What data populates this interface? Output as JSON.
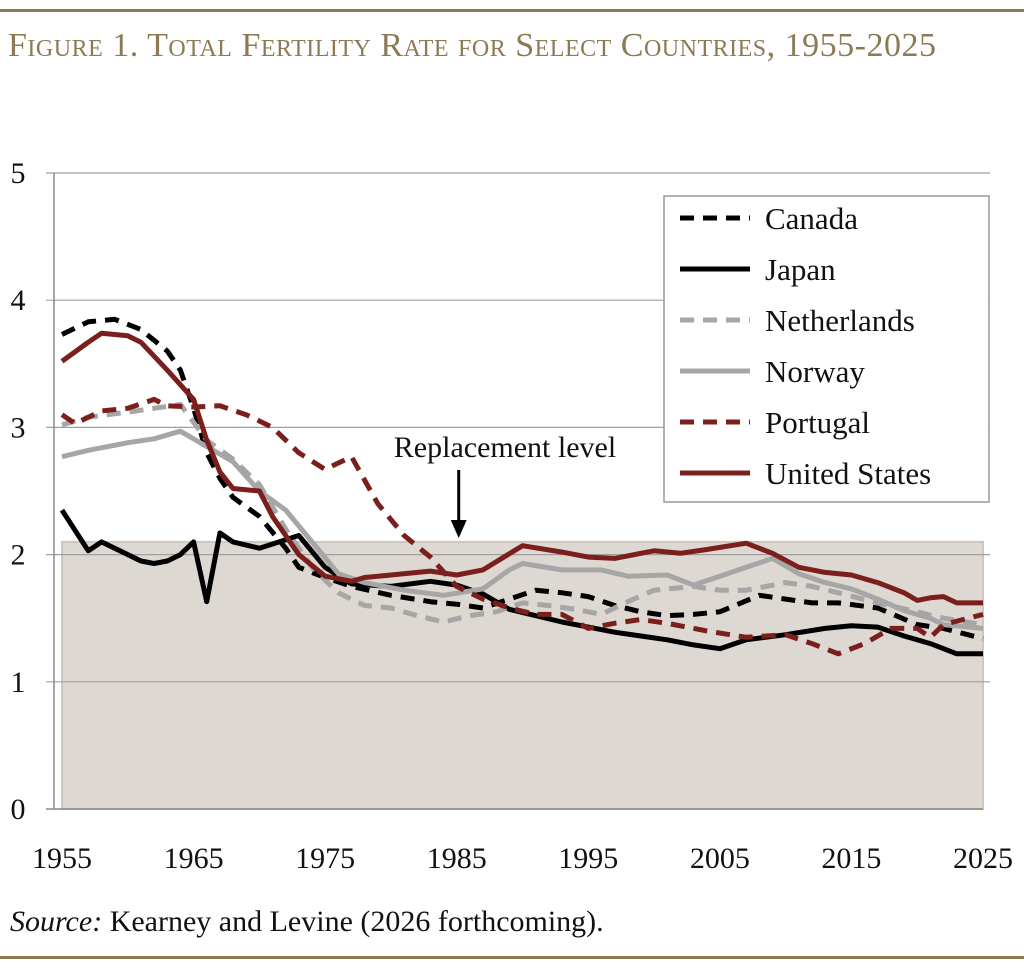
{
  "title": "Figure 1. Total Fertility Rate for Select Countries, 1955-2025",
  "source_label": "Source:",
  "source_text": " Kearney and Levine (2026 forthcoming).",
  "colors": {
    "accent": "#8c7a55",
    "dark_red": "#7a1f1c",
    "gray": "#a6a6a6",
    "black": "#000000",
    "shading": "#ddd8d2"
  },
  "chart_data": {
    "type": "line",
    "title": "Figure 1. Total Fertility Rate for Select Countries, 1955-2025",
    "xlabel": "",
    "ylabel": "",
    "xlim": [
      1955,
      2025
    ],
    "ylim": [
      0,
      5
    ],
    "x_ticks": [
      "1955",
      "1965",
      "1975",
      "1985",
      "1995",
      "2005",
      "2015",
      "2025"
    ],
    "y_ticks": [
      "0",
      "1",
      "2",
      "3",
      "4",
      "5"
    ],
    "grid": "horizontal",
    "legend_position": "top-right",
    "shaded_region": {
      "from": 0,
      "to": 2.1
    },
    "annotation": {
      "text": "Replacement level",
      "arrow_x": 1985
    },
    "series": [
      {
        "name": "Canada",
        "color": "#000000",
        "style": "dashed",
        "points": [
          [
            1955,
            3.73
          ],
          [
            1957,
            3.83
          ],
          [
            1959,
            3.85
          ],
          [
            1961,
            3.77
          ],
          [
            1963,
            3.6
          ],
          [
            1964,
            3.45
          ],
          [
            1965,
            3.15
          ],
          [
            1966,
            2.8
          ],
          [
            1967,
            2.6
          ],
          [
            1968,
            2.45
          ],
          [
            1970,
            2.3
          ],
          [
            1972,
            2.05
          ],
          [
            1973,
            1.9
          ],
          [
            1975,
            1.82
          ],
          [
            1977,
            1.75
          ],
          [
            1980,
            1.68
          ],
          [
            1983,
            1.63
          ],
          [
            1985,
            1.61
          ],
          [
            1987,
            1.58
          ],
          [
            1989,
            1.65
          ],
          [
            1991,
            1.72
          ],
          [
            1993,
            1.7
          ],
          [
            1995,
            1.67
          ],
          [
            1997,
            1.6
          ],
          [
            1999,
            1.55
          ],
          [
            2001,
            1.52
          ],
          [
            2003,
            1.53
          ],
          [
            2005,
            1.55
          ],
          [
            2008,
            1.68
          ],
          [
            2010,
            1.65
          ],
          [
            2012,
            1.62
          ],
          [
            2014,
            1.62
          ],
          [
            2017,
            1.58
          ],
          [
            2020,
            1.45
          ],
          [
            2022,
            1.42
          ],
          [
            2025,
            1.34
          ]
        ]
      },
      {
        "name": "Japan",
        "color": "#000000",
        "style": "solid",
        "points": [
          [
            1955,
            2.35
          ],
          [
            1957,
            2.03
          ],
          [
            1958,
            2.1
          ],
          [
            1960,
            2.0
          ],
          [
            1961,
            1.95
          ],
          [
            1962,
            1.93
          ],
          [
            1963,
            1.95
          ],
          [
            1964,
            2.0
          ],
          [
            1965,
            2.1
          ],
          [
            1966,
            1.63
          ],
          [
            1967,
            2.17
          ],
          [
            1968,
            2.1
          ],
          [
            1970,
            2.05
          ],
          [
            1973,
            2.15
          ],
          [
            1975,
            1.9
          ],
          [
            1977,
            1.77
          ],
          [
            1980,
            1.75
          ],
          [
            1983,
            1.79
          ],
          [
            1985,
            1.76
          ],
          [
            1987,
            1.69
          ],
          [
            1989,
            1.57
          ],
          [
            1991,
            1.52
          ],
          [
            1993,
            1.47
          ],
          [
            1995,
            1.43
          ],
          [
            1997,
            1.39
          ],
          [
            1999,
            1.36
          ],
          [
            2001,
            1.33
          ],
          [
            2003,
            1.29
          ],
          [
            2005,
            1.26
          ],
          [
            2007,
            1.33
          ],
          [
            2010,
            1.37
          ],
          [
            2013,
            1.42
          ],
          [
            2015,
            1.44
          ],
          [
            2017,
            1.43
          ],
          [
            2019,
            1.36
          ],
          [
            2021,
            1.3
          ],
          [
            2023,
            1.22
          ],
          [
            2025,
            1.22
          ]
        ]
      },
      {
        "name": "Netherlands",
        "color": "#a6a6a6",
        "style": "dashed",
        "points": [
          [
            1955,
            3.02
          ],
          [
            1957,
            3.08
          ],
          [
            1960,
            3.12
          ],
          [
            1964,
            3.18
          ],
          [
            1966,
            2.9
          ],
          [
            1968,
            2.75
          ],
          [
            1970,
            2.55
          ],
          [
            1972,
            2.2
          ],
          [
            1974,
            1.9
          ],
          [
            1976,
            1.7
          ],
          [
            1978,
            1.6
          ],
          [
            1980,
            1.58
          ],
          [
            1982,
            1.52
          ],
          [
            1984,
            1.47
          ],
          [
            1986,
            1.52
          ],
          [
            1988,
            1.55
          ],
          [
            1990,
            1.62
          ],
          [
            1992,
            1.6
          ],
          [
            1994,
            1.57
          ],
          [
            1996,
            1.53
          ],
          [
            1998,
            1.63
          ],
          [
            2000,
            1.72
          ],
          [
            2003,
            1.75
          ],
          [
            2005,
            1.72
          ],
          [
            2007,
            1.72
          ],
          [
            2010,
            1.78
          ],
          [
            2012,
            1.75
          ],
          [
            2014,
            1.7
          ],
          [
            2017,
            1.62
          ],
          [
            2020,
            1.55
          ],
          [
            2022,
            1.5
          ],
          [
            2025,
            1.45
          ]
        ]
      },
      {
        "name": "Norway",
        "color": "#a6a6a6",
        "style": "solid",
        "points": [
          [
            1955,
            2.77
          ],
          [
            1957,
            2.82
          ],
          [
            1960,
            2.88
          ],
          [
            1962,
            2.91
          ],
          [
            1964,
            2.97
          ],
          [
            1966,
            2.85
          ],
          [
            1968,
            2.73
          ],
          [
            1970,
            2.5
          ],
          [
            1972,
            2.35
          ],
          [
            1974,
            2.1
          ],
          [
            1976,
            1.85
          ],
          [
            1978,
            1.78
          ],
          [
            1981,
            1.72
          ],
          [
            1984,
            1.68
          ],
          [
            1987,
            1.73
          ],
          [
            1989,
            1.88
          ],
          [
            1990,
            1.93
          ],
          [
            1993,
            1.88
          ],
          [
            1996,
            1.88
          ],
          [
            1998,
            1.83
          ],
          [
            2001,
            1.84
          ],
          [
            2003,
            1.76
          ],
          [
            2005,
            1.83
          ],
          [
            2007,
            1.9
          ],
          [
            2009,
            1.97
          ],
          [
            2011,
            1.85
          ],
          [
            2013,
            1.78
          ],
          [
            2015,
            1.73
          ],
          [
            2017,
            1.65
          ],
          [
            2019,
            1.56
          ],
          [
            2021,
            1.5
          ],
          [
            2022,
            1.45
          ],
          [
            2025,
            1.42
          ]
        ]
      },
      {
        "name": "Portugal",
        "color": "#7a1f1c",
        "style": "dashed",
        "points": [
          [
            1955,
            3.1
          ],
          [
            1956,
            3.03
          ],
          [
            1958,
            3.13
          ],
          [
            1960,
            3.15
          ],
          [
            1962,
            3.22
          ],
          [
            1963,
            3.17
          ],
          [
            1965,
            3.16
          ],
          [
            1967,
            3.17
          ],
          [
            1969,
            3.1
          ],
          [
            1971,
            3.0
          ],
          [
            1973,
            2.8
          ],
          [
            1975,
            2.67
          ],
          [
            1977,
            2.77
          ],
          [
            1979,
            2.4
          ],
          [
            1981,
            2.15
          ],
          [
            1983,
            1.98
          ],
          [
            1985,
            1.75
          ],
          [
            1987,
            1.65
          ],
          [
            1989,
            1.58
          ],
          [
            1991,
            1.53
          ],
          [
            1993,
            1.53
          ],
          [
            1995,
            1.42
          ],
          [
            1997,
            1.46
          ],
          [
            1999,
            1.49
          ],
          [
            2001,
            1.46
          ],
          [
            2004,
            1.4
          ],
          [
            2007,
            1.35
          ],
          [
            2010,
            1.37
          ],
          [
            2012,
            1.3
          ],
          [
            2014,
            1.22
          ],
          [
            2016,
            1.3
          ],
          [
            2018,
            1.42
          ],
          [
            2020,
            1.42
          ],
          [
            2021,
            1.35
          ],
          [
            2022,
            1.45
          ],
          [
            2025,
            1.53
          ]
        ]
      },
      {
        "name": "United States",
        "color": "#7a1f1c",
        "style": "solid",
        "points": [
          [
            1955,
            3.52
          ],
          [
            1957,
            3.67
          ],
          [
            1958,
            3.74
          ],
          [
            1960,
            3.72
          ],
          [
            1961,
            3.67
          ],
          [
            1963,
            3.45
          ],
          [
            1965,
            3.22
          ],
          [
            1966,
            2.9
          ],
          [
            1967,
            2.65
          ],
          [
            1968,
            2.52
          ],
          [
            1970,
            2.5
          ],
          [
            1971,
            2.3
          ],
          [
            1973,
            2.0
          ],
          [
            1975,
            1.83
          ],
          [
            1977,
            1.79
          ],
          [
            1978,
            1.82
          ],
          [
            1980,
            1.84
          ],
          [
            1983,
            1.87
          ],
          [
            1985,
            1.84
          ],
          [
            1987,
            1.88
          ],
          [
            1990,
            2.07
          ],
          [
            1993,
            2.02
          ],
          [
            1995,
            1.98
          ],
          [
            1997,
            1.97
          ],
          [
            2000,
            2.03
          ],
          [
            2002,
            2.01
          ],
          [
            2004,
            2.04
          ],
          [
            2007,
            2.09
          ],
          [
            2009,
            2.01
          ],
          [
            2011,
            1.9
          ],
          [
            2013,
            1.86
          ],
          [
            2015,
            1.84
          ],
          [
            2017,
            1.78
          ],
          [
            2019,
            1.7
          ],
          [
            2020,
            1.64
          ],
          [
            2021,
            1.66
          ],
          [
            2022,
            1.67
          ],
          [
            2023,
            1.62
          ],
          [
            2025,
            1.62
          ]
        ]
      }
    ]
  }
}
